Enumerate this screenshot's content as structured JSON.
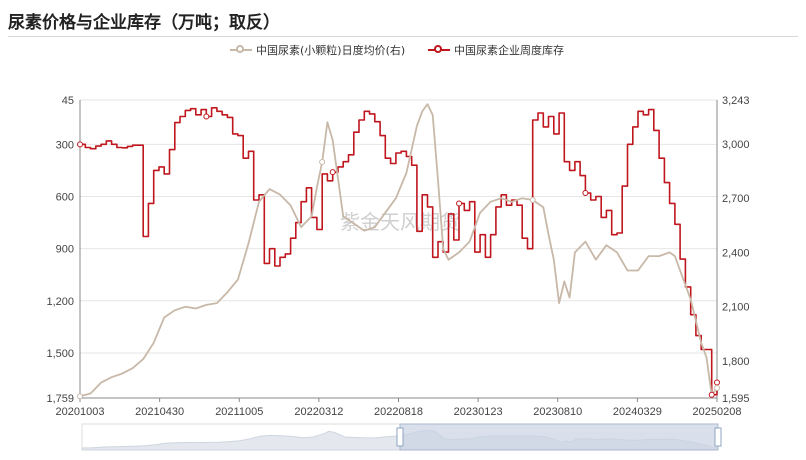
{
  "page": {
    "title": "尿素价格与企业库存（万吨；取反）",
    "watermark": "紫金天风期货"
  },
  "legend": [
    {
      "label": "中国尿素(小颗粒)日度均价(右)",
      "color": "#c8b8a8"
    },
    {
      "label": "中国尿素企业周度库存",
      "color": "#c0161e"
    }
  ],
  "colors": {
    "inventory": "#c0161e",
    "price": "#c8b8a8",
    "grid": "#e6e6e6",
    "slider": "#c9d3e2"
  },
  "chart_data": {
    "type": "line",
    "x_tick_labels": [
      "20201003",
      "20210430",
      "20211005",
      "20220312",
      "20220818",
      "20230123",
      "20230810",
      "20240329",
      "20250208"
    ],
    "left_axis": {
      "tick_labels": [
        "45",
        "300",
        "600",
        "900",
        "1,200",
        "1,500",
        "1,759"
      ],
      "range": [
        45,
        1759
      ],
      "inverted": true
    },
    "right_axis": {
      "tick_labels": [
        "3,243",
        "3,000",
        "2,700",
        "2,400",
        "2,100",
        "1,800",
        "1,595"
      ],
      "range": [
        1595,
        3243
      ]
    },
    "series": [
      {
        "name": "中国尿素企业周度库存",
        "axis": "left",
        "step": true,
        "points": [
          [
            0,
            300
          ],
          [
            1,
            318
          ],
          [
            2,
            325
          ],
          [
            3,
            310
          ],
          [
            4,
            300
          ],
          [
            5,
            280
          ],
          [
            6,
            300
          ],
          [
            7,
            318
          ],
          [
            8,
            320
          ],
          [
            9,
            312
          ],
          [
            10,
            305
          ],
          [
            11,
            305
          ],
          [
            12,
            830
          ],
          [
            13,
            640
          ],
          [
            14,
            450
          ],
          [
            15,
            430
          ],
          [
            16,
            470
          ],
          [
            17,
            330
          ],
          [
            18,
            175
          ],
          [
            19,
            140
          ],
          [
            20,
            105
          ],
          [
            21,
            95
          ],
          [
            22,
            130
          ],
          [
            23,
            100
          ],
          [
            24,
            140
          ],
          [
            25,
            90
          ],
          [
            26,
            110
          ],
          [
            27,
            130
          ],
          [
            28,
            145
          ],
          [
            29,
            240
          ],
          [
            30,
            250
          ],
          [
            31,
            380
          ],
          [
            32,
            340
          ],
          [
            33,
            620
          ],
          [
            34,
            590
          ],
          [
            35,
            985
          ],
          [
            36,
            900
          ],
          [
            37,
            1000
          ],
          [
            38,
            950
          ],
          [
            39,
            930
          ],
          [
            40,
            840
          ],
          [
            41,
            750
          ],
          [
            42,
            630
          ],
          [
            43,
            550
          ],
          [
            44,
            720
          ],
          [
            45,
            790
          ],
          [
            46,
            470
          ],
          [
            47,
            510
          ],
          [
            48,
            460
          ],
          [
            49,
            430
          ],
          [
            50,
            400
          ],
          [
            51,
            360
          ],
          [
            52,
            230
          ],
          [
            53,
            160
          ],
          [
            54,
            110
          ],
          [
            55,
            125
          ],
          [
            56,
            170
          ],
          [
            57,
            250
          ],
          [
            58,
            380
          ],
          [
            59,
            410
          ],
          [
            60,
            350
          ],
          [
            61,
            340
          ],
          [
            62,
            370
          ],
          [
            63,
            420
          ],
          [
            64,
            800
          ],
          [
            65,
            590
          ],
          [
            66,
            660
          ],
          [
            67,
            950
          ],
          [
            68,
            860
          ],
          [
            69,
            920
          ],
          [
            70,
            700
          ],
          [
            71,
            850
          ],
          [
            72,
            640
          ],
          [
            73,
            680
          ],
          [
            74,
            630
          ],
          [
            75,
            920
          ],
          [
            76,
            820
          ],
          [
            77,
            950
          ],
          [
            78,
            820
          ],
          [
            79,
            660
          ],
          [
            80,
            590
          ],
          [
            81,
            650
          ],
          [
            82,
            620
          ],
          [
            83,
            650
          ],
          [
            84,
            840
          ],
          [
            85,
            900
          ],
          [
            86,
            160
          ],
          [
            87,
            120
          ],
          [
            88,
            200
          ],
          [
            89,
            140
          ],
          [
            90,
            240
          ],
          [
            91,
            120
          ],
          [
            92,
            400
          ],
          [
            93,
            450
          ],
          [
            94,
            400
          ],
          [
            95,
            480
          ],
          [
            96,
            580
          ],
          [
            97,
            620
          ],
          [
            98,
            600
          ],
          [
            99,
            720
          ],
          [
            100,
            680
          ],
          [
            101,
            820
          ],
          [
            102,
            810
          ],
          [
            103,
            540
          ],
          [
            104,
            300
          ],
          [
            105,
            200
          ],
          [
            106,
            110
          ],
          [
            107,
            130
          ],
          [
            108,
            100
          ],
          [
            109,
            220
          ],
          [
            110,
            380
          ],
          [
            111,
            520
          ],
          [
            112,
            640
          ],
          [
            113,
            760
          ],
          [
            114,
            960
          ],
          [
            115,
            1120
          ],
          [
            116,
            1280
          ],
          [
            117,
            1400
          ],
          [
            118,
            1480
          ],
          [
            119,
            1480
          ],
          [
            120,
            1740
          ],
          [
            121,
            1670
          ]
        ]
      },
      {
        "name": "中国尿素(小颗粒)日度均价(右)",
        "axis": "right",
        "step": false,
        "points": [
          [
            0,
            1605
          ],
          [
            2,
            1620
          ],
          [
            4,
            1680
          ],
          [
            6,
            1710
          ],
          [
            8,
            1730
          ],
          [
            10,
            1760
          ],
          [
            12,
            1810
          ],
          [
            14,
            1900
          ],
          [
            16,
            2040
          ],
          [
            18,
            2080
          ],
          [
            20,
            2100
          ],
          [
            22,
            2090
          ],
          [
            24,
            2110
          ],
          [
            26,
            2120
          ],
          [
            28,
            2180
          ],
          [
            30,
            2250
          ],
          [
            32,
            2450
          ],
          [
            34,
            2680
          ],
          [
            36,
            2750
          ],
          [
            38,
            2720
          ],
          [
            40,
            2660
          ],
          [
            42,
            2540
          ],
          [
            44,
            2600
          ],
          [
            45,
            2760
          ],
          [
            46,
            2900
          ],
          [
            47,
            3120
          ],
          [
            48,
            3020
          ],
          [
            50,
            2600
          ],
          [
            52,
            2560
          ],
          [
            54,
            2520
          ],
          [
            56,
            2540
          ],
          [
            58,
            2620
          ],
          [
            60,
            2700
          ],
          [
            62,
            2840
          ],
          [
            64,
            3100
          ],
          [
            65,
            3180
          ],
          [
            66,
            3220
          ],
          [
            67,
            3160
          ],
          [
            68,
            2800
          ],
          [
            69,
            2420
          ],
          [
            70,
            2360
          ],
          [
            72,
            2400
          ],
          [
            74,
            2460
          ],
          [
            76,
            2620
          ],
          [
            78,
            2680
          ],
          [
            80,
            2700
          ],
          [
            82,
            2680
          ],
          [
            84,
            2700
          ],
          [
            86,
            2690
          ],
          [
            88,
            2650
          ],
          [
            89,
            2500
          ],
          [
            90,
            2360
          ],
          [
            91,
            2120
          ],
          [
            92,
            2240
          ],
          [
            93,
            2150
          ],
          [
            94,
            2400
          ],
          [
            96,
            2460
          ],
          [
            98,
            2360
          ],
          [
            100,
            2440
          ],
          [
            102,
            2400
          ],
          [
            104,
            2300
          ],
          [
            106,
            2300
          ],
          [
            108,
            2380
          ],
          [
            110,
            2380
          ],
          [
            112,
            2400
          ],
          [
            113,
            2380
          ],
          [
            114,
            2300
          ],
          [
            116,
            2140
          ],
          [
            118,
            1900
          ],
          [
            119,
            1820
          ],
          [
            120,
            1610
          ],
          [
            121,
            1650
          ]
        ]
      }
    ],
    "grid": true,
    "legend_position": "top-center"
  }
}
